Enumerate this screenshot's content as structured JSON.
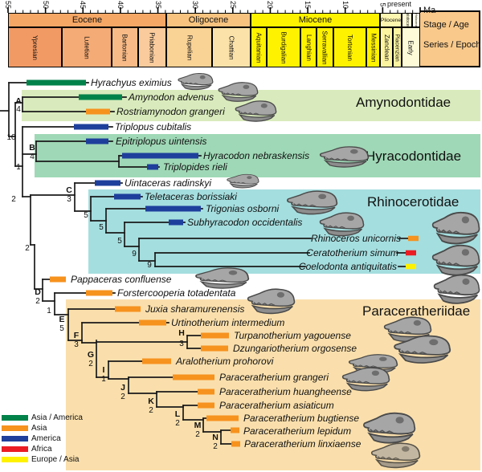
{
  "timescale": {
    "present_label": "present",
    "ma_label": "Ma",
    "stage_age_label": "Stage / Age",
    "series_epoch_label": "Series / Epoch",
    "ticks": [
      "55",
      "50",
      "45",
      "40",
      "35",
      "30",
      "25",
      "20",
      "15",
      "10",
      "5"
    ],
    "epochs": [
      {
        "label": "Eocene",
        "color": "#F5A765"
      },
      {
        "label": "Oligocene",
        "color": "#F7C37F"
      },
      {
        "label": "Miocene",
        "color": "#FFF200"
      },
      {
        "label": "Pliocene",
        "color": "#FDF6B0"
      },
      {
        "label": "Pleistocene",
        "color": "#FEFBD6"
      },
      {
        "label": "Holocene",
        "color": "#FFFEE9"
      }
    ],
    "stages": [
      {
        "label": "Ypresian",
        "color": "#F29A64"
      },
      {
        "label": "Lutetian",
        "color": "#F5AB75"
      },
      {
        "label": "Bartonian",
        "color": "#F8BB87"
      },
      {
        "label": "Priabonian",
        "color": "#FACB9C"
      },
      {
        "label": "Rupelian",
        "color": "#F9D295"
      },
      {
        "label": "Chattian",
        "color": "#FBE2A9"
      },
      {
        "label": "Aquitanian",
        "color": "#FFF200"
      },
      {
        "label": "Burdigalian",
        "color": "#FFF200"
      },
      {
        "label": "Langhian",
        "color": "#FFF200"
      },
      {
        "label": "Serravallian",
        "color": "#FFF200"
      },
      {
        "label": "Tortonian",
        "color": "#FFF200"
      },
      {
        "label": "Messinian",
        "color": "#FFF200"
      },
      {
        "label": "Zanclean",
        "color": "#FDF4A0"
      },
      {
        "label": "Piacenzian",
        "color": "#FDF4A0"
      },
      {
        "label": "Early",
        "color": "#FEFBD8"
      }
    ]
  },
  "tree": {
    "families": [
      {
        "label": "Amynodontidae",
        "color": "#D9EBBC"
      },
      {
        "label": "Hyracodontidae",
        "color": "#9FD8B6"
      },
      {
        "label": "Rhinocerotidae",
        "color": "#A5DEDF"
      },
      {
        "label": "Paraceratheriidae",
        "color": "#FADFAC"
      }
    ],
    "taxa": [
      {
        "label": "Hyrachyus eximius",
        "region": "asia_america"
      },
      {
        "label": "Amynodon advenus",
        "region": "asia_america"
      },
      {
        "label": "Rostriamynodon grangeri",
        "region": "asia"
      },
      {
        "label": "Triplopus cubitalis",
        "region": "america"
      },
      {
        "label": "Epitriplopus uintensis",
        "region": "america"
      },
      {
        "label": "Hyracodon nebraskensis",
        "region": "america"
      },
      {
        "label": "Triplopides rieli",
        "region": "america"
      },
      {
        "label": "Uintaceras radinskyi",
        "region": "america"
      },
      {
        "label": "Teletaceras borissiaki",
        "region": "america"
      },
      {
        "label": "Trigonias osborni",
        "region": "america"
      },
      {
        "label": "Subhyracodon occidentalis",
        "region": "america"
      },
      {
        "label": "Rhinoceros unicornis",
        "region": "asia"
      },
      {
        "label": "Ceratotherium simum",
        "region": "africa"
      },
      {
        "label": "Coelodonta antiquitatis",
        "region": "europe_asia"
      },
      {
        "label": "Pappaceras confluense",
        "region": "asia"
      },
      {
        "label": "Forstercooperia totadentata",
        "region": "asia"
      },
      {
        "label": "Juxia sharamurenensis",
        "region": "asia"
      },
      {
        "label": "Urtinotherium intermedium",
        "region": "asia"
      },
      {
        "label": "Turpanotherium yagouense",
        "region": "asia"
      },
      {
        "label": "Dzungariotherium orgosense",
        "region": "asia"
      },
      {
        "label": "Aralotherium prohorovi",
        "region": "asia"
      },
      {
        "label": "Paraceratherium grangeri",
        "region": "asia"
      },
      {
        "label": "Paraceratherium huangheense",
        "region": "asia"
      },
      {
        "label": "Paraceratherium asiaticum",
        "region": "asia"
      },
      {
        "label": "Paraceratherium bugtiense",
        "region": "asia"
      },
      {
        "label": "Paraceratherium lepidum",
        "region": "asia"
      },
      {
        "label": "Paraceratherium linxiaense",
        "region": "asia"
      }
    ],
    "node_labels": [
      "10",
      "1",
      "A",
      "4",
      "B",
      "4",
      "2",
      "C",
      "3",
      "5",
      "5",
      "5",
      "9",
      "9",
      "2",
      "D",
      "2",
      "1",
      "E",
      "5",
      "F",
      "3",
      "G",
      "2",
      "H",
      "3",
      "I",
      "1",
      "J",
      "2",
      "K",
      "2",
      "L",
      "2",
      "M",
      "2",
      "N",
      "2"
    ]
  },
  "legend": {
    "items": [
      {
        "label": "Asia / America",
        "key": "asia_america",
        "color": "#00824A"
      },
      {
        "label": "Asia",
        "key": "asia",
        "color": "#F6921E"
      },
      {
        "label": "America",
        "key": "america",
        "color": "#1E3F9C"
      },
      {
        "label": "Africa",
        "key": "africa",
        "color": "#EC1C24"
      },
      {
        "label": "Europe / Asia",
        "key": "europe_asia",
        "color": "#FFF200"
      }
    ]
  }
}
